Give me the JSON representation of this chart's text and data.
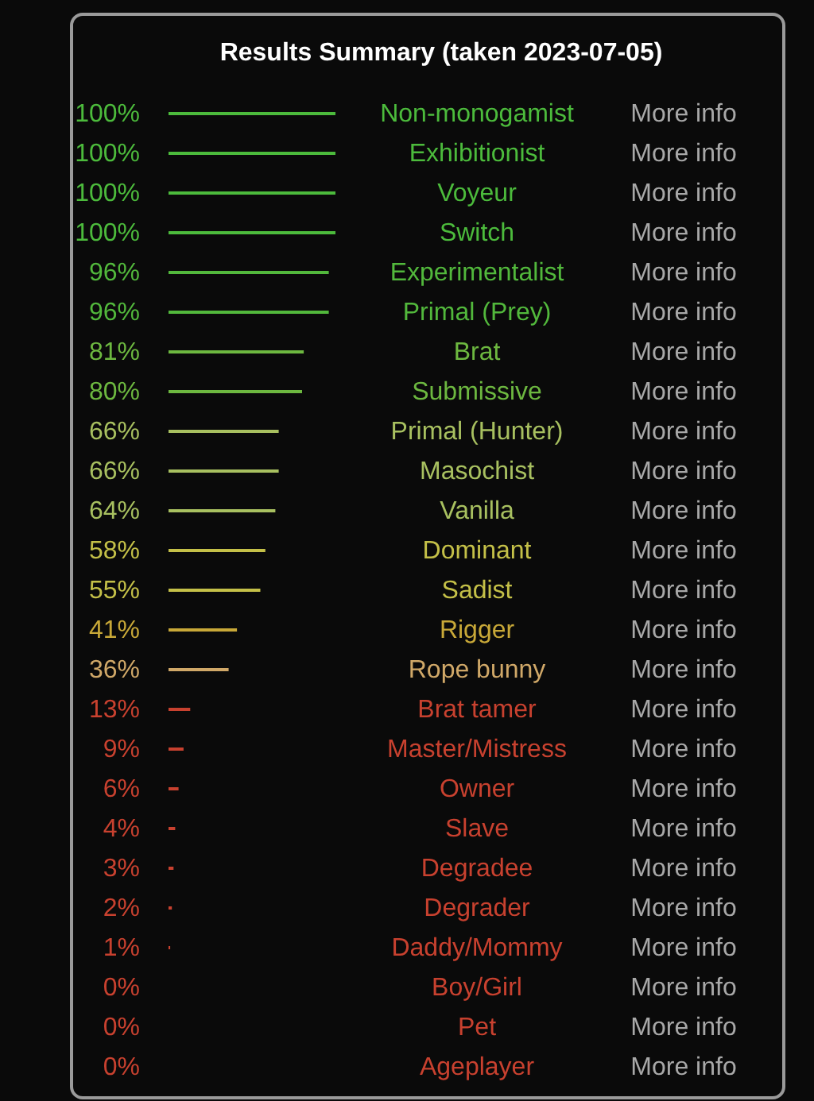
{
  "chart_data": {
    "type": "bar",
    "orientation": "horizontal",
    "title": "Results Summary (taken 2023-07-05)",
    "categories": [
      "Non-monogamist",
      "Exhibitionist",
      "Voyeur",
      "Switch",
      "Experimentalist",
      "Primal (Prey)",
      "Brat",
      "Submissive",
      "Primal (Hunter)",
      "Masochist",
      "Vanilla",
      "Dominant",
      "Sadist",
      "Rigger",
      "Rope bunny",
      "Brat tamer",
      "Master/Mistress",
      "Owner",
      "Slave",
      "Degradee",
      "Degrader",
      "Daddy/Mommy",
      "Boy/Girl",
      "Pet",
      "Ageplayer"
    ],
    "values": [
      100,
      100,
      100,
      100,
      96,
      96,
      81,
      80,
      66,
      66,
      64,
      58,
      55,
      41,
      36,
      13,
      9,
      6,
      4,
      3,
      2,
      1,
      0,
      0,
      0
    ],
    "value_labels": [
      "100%",
      "100%",
      "100%",
      "100%",
      "96%",
      "96%",
      "81%",
      "80%",
      "66%",
      "66%",
      "64%",
      "58%",
      "55%",
      "41%",
      "36%",
      "13%",
      "9%",
      "6%",
      "4%",
      "3%",
      "2%",
      "1%",
      "0%",
      "0%",
      "0%"
    ],
    "colors": [
      "#4cbb3c",
      "#4cbb3c",
      "#4cbb3c",
      "#4cbb3c",
      "#52b83c",
      "#52b83c",
      "#6db840",
      "#6db840",
      "#a8c060",
      "#a8c060",
      "#a8c060",
      "#c4c048",
      "#c4c048",
      "#c8a838",
      "#d0a868",
      "#c8412f",
      "#c8412f",
      "#c8412f",
      "#c8412f",
      "#c8412f",
      "#c8412f",
      "#c8412f",
      "#c8412f",
      "#c8412f",
      "#c8412f"
    ],
    "xlim": [
      0,
      100
    ],
    "tick_labels": "y",
    "grid": false,
    "legend": false,
    "annotations": [
      "More info",
      "More info",
      "More info",
      "More info",
      "More info",
      "More info",
      "More info",
      "More info",
      "More info",
      "More info",
      "More info",
      "More info",
      "More info",
      "More info",
      "More info",
      "More info",
      "More info",
      "More info",
      "More info",
      "More info",
      "More info",
      "More info",
      "More info",
      "More info",
      "More info"
    ]
  }
}
